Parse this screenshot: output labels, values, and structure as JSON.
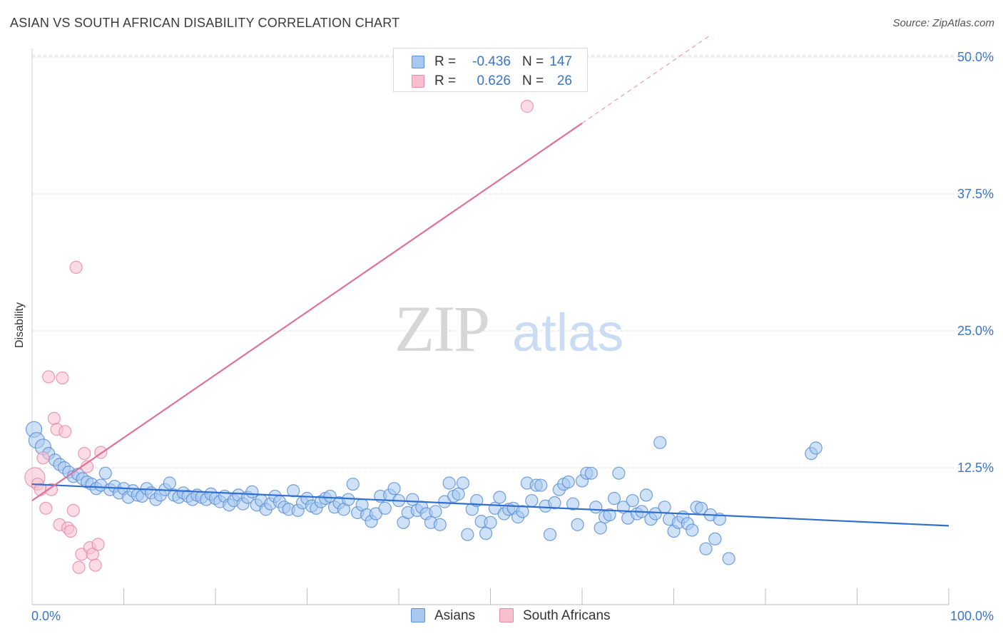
{
  "title": "ASIAN VS SOUTH AFRICAN DISABILITY CORRELATION CHART",
  "source": "Source: ZipAtlas.com",
  "watermark": {
    "zip": "ZIP",
    "atlas": "atlas"
  },
  "colors": {
    "asian_fill": "#a8c8f0",
    "asian_stroke": "#5b8fd6",
    "asian_line": "#2f6fcf",
    "sa_fill": "#f7bfd0",
    "sa_stroke": "#e58aa8",
    "sa_line": "#e0709a",
    "tick_text": "#3a74c8",
    "grid": "#dcdcdc"
  },
  "legend_top": [
    {
      "r_label": "R =",
      "r_value": "-0.436",
      "n_label": "N =",
      "n_value": "147"
    },
    {
      "r_label": "R =",
      "r_value": "0.626",
      "n_label": "N =",
      "n_value": "26"
    }
  ],
  "legend_bottom": [
    {
      "label": "Asians"
    },
    {
      "label": "South Africans"
    }
  ],
  "chart_data": {
    "type": "scatter",
    "title": "ASIAN VS SOUTH AFRICAN DISABILITY CORRELATION CHART",
    "xlabel": "",
    "ylabel": "Disability",
    "xlim": [
      0,
      100
    ],
    "ylim": [
      0,
      52
    ],
    "x_tick_labels": [
      "0.0%",
      "100.0%"
    ],
    "y_ticks": [
      12.5,
      25.0,
      37.5,
      50.0
    ],
    "y_tick_labels": [
      "12.5%",
      "25.0%",
      "37.5%",
      "50.0%"
    ],
    "grid": true,
    "legend_placement": "top-center",
    "series": [
      {
        "name": "Asians",
        "r": -0.436,
        "n": 147,
        "trend": {
          "x": [
            0,
            100
          ],
          "y": [
            11.0,
            7.2
          ],
          "solid_until": 100
        },
        "points": [
          [
            0.2,
            16.0
          ],
          [
            0.5,
            15.0
          ],
          [
            1.2,
            14.4
          ],
          [
            1.8,
            13.8
          ],
          [
            2.5,
            13.2
          ],
          [
            3.0,
            12.8
          ],
          [
            3.5,
            12.5
          ],
          [
            4.0,
            12.1
          ],
          [
            4.5,
            11.7
          ],
          [
            5.0,
            11.9
          ],
          [
            5.5,
            11.5
          ],
          [
            6.0,
            11.2
          ],
          [
            6.5,
            11.0
          ],
          [
            7.0,
            10.6
          ],
          [
            7.5,
            10.9
          ],
          [
            8.0,
            12.0
          ],
          [
            8.5,
            10.5
          ],
          [
            9.0,
            10.8
          ],
          [
            9.5,
            10.2
          ],
          [
            10.0,
            10.6
          ],
          [
            10.5,
            9.8
          ],
          [
            11.0,
            10.4
          ],
          [
            11.5,
            10.0
          ],
          [
            12.0,
            9.9
          ],
          [
            12.5,
            10.6
          ],
          [
            13.0,
            10.2
          ],
          [
            13.5,
            9.6
          ],
          [
            14.0,
            10.0
          ],
          [
            14.5,
            10.5
          ],
          [
            15.0,
            11.1
          ],
          [
            15.5,
            10.0
          ],
          [
            16.0,
            9.8
          ],
          [
            16.5,
            10.2
          ],
          [
            17.0,
            9.9
          ],
          [
            17.5,
            9.6
          ],
          [
            18.0,
            10.0
          ],
          [
            18.5,
            9.8
          ],
          [
            19.0,
            9.6
          ],
          [
            19.5,
            10.1
          ],
          [
            20.0,
            9.7
          ],
          [
            20.5,
            9.4
          ],
          [
            21.0,
            9.9
          ],
          [
            21.5,
            9.1
          ],
          [
            22.0,
            9.5
          ],
          [
            22.5,
            10.0
          ],
          [
            23.0,
            9.2
          ],
          [
            23.5,
            9.8
          ],
          [
            24.0,
            10.3
          ],
          [
            24.5,
            9.1
          ],
          [
            25.0,
            9.5
          ],
          [
            25.5,
            8.7
          ],
          [
            26.0,
            9.2
          ],
          [
            26.5,
            9.9
          ],
          [
            27.0,
            9.4
          ],
          [
            27.5,
            8.9
          ],
          [
            28.0,
            8.7
          ],
          [
            28.5,
            10.4
          ],
          [
            29.0,
            8.6
          ],
          [
            29.5,
            9.3
          ],
          [
            30.0,
            9.7
          ],
          [
            30.5,
            9.0
          ],
          [
            31.0,
            8.8
          ],
          [
            31.5,
            9.4
          ],
          [
            32.0,
            9.7
          ],
          [
            32.5,
            9.9
          ],
          [
            33.0,
            8.9
          ],
          [
            33.5,
            9.3
          ],
          [
            34.0,
            8.7
          ],
          [
            34.5,
            9.6
          ],
          [
            35.0,
            11.0
          ],
          [
            35.5,
            8.4
          ],
          [
            36.0,
            9.1
          ],
          [
            36.5,
            8.2
          ],
          [
            37.0,
            7.6
          ],
          [
            37.5,
            8.3
          ],
          [
            38.0,
            9.9
          ],
          [
            38.5,
            8.8
          ],
          [
            39.0,
            10.0
          ],
          [
            39.5,
            10.6
          ],
          [
            40.0,
            9.5
          ],
          [
            40.5,
            7.5
          ],
          [
            41.0,
            8.4
          ],
          [
            41.5,
            9.6
          ],
          [
            42.0,
            8.6
          ],
          [
            42.5,
            8.9
          ],
          [
            43.0,
            8.3
          ],
          [
            43.5,
            7.5
          ],
          [
            44.0,
            8.5
          ],
          [
            44.5,
            7.3
          ],
          [
            45.0,
            9.4
          ],
          [
            45.5,
            11.1
          ],
          [
            46.0,
            9.9
          ],
          [
            46.5,
            10.1
          ],
          [
            47.0,
            11.1
          ],
          [
            47.5,
            6.4
          ],
          [
            48.0,
            8.7
          ],
          [
            48.5,
            9.5
          ],
          [
            49.0,
            7.6
          ],
          [
            49.5,
            6.5
          ],
          [
            50.0,
            7.5
          ],
          [
            50.5,
            8.8
          ],
          [
            51.0,
            9.8
          ],
          [
            51.5,
            8.3
          ],
          [
            52.0,
            8.7
          ],
          [
            52.5,
            8.8
          ],
          [
            53.0,
            8.0
          ],
          [
            53.5,
            8.5
          ],
          [
            54.0,
            11.1
          ],
          [
            54.5,
            9.5
          ],
          [
            55.0,
            10.9
          ],
          [
            55.5,
            10.9
          ],
          [
            56.0,
            9.0
          ],
          [
            56.5,
            6.4
          ],
          [
            57.0,
            9.3
          ],
          [
            57.5,
            10.5
          ],
          [
            58.0,
            11.0
          ],
          [
            58.5,
            11.2
          ],
          [
            59.0,
            9.2
          ],
          [
            59.5,
            7.3
          ],
          [
            60.0,
            11.3
          ],
          [
            60.5,
            12.0
          ],
          [
            61.0,
            12.0
          ],
          [
            61.5,
            8.9
          ],
          [
            62.0,
            7.0
          ],
          [
            62.5,
            8.0
          ],
          [
            63.0,
            8.2
          ],
          [
            63.5,
            9.7
          ],
          [
            64.0,
            12.0
          ],
          [
            64.5,
            8.9
          ],
          [
            65.0,
            7.9
          ],
          [
            65.5,
            9.5
          ],
          [
            66.0,
            8.3
          ],
          [
            66.5,
            8.5
          ],
          [
            67.0,
            10.0
          ],
          [
            67.5,
            7.8
          ],
          [
            68.0,
            8.3
          ],
          [
            68.5,
            14.8
          ],
          [
            69.0,
            8.9
          ],
          [
            69.5,
            7.8
          ],
          [
            70.0,
            6.7
          ],
          [
            70.5,
            7.5
          ],
          [
            71.0,
            8.0
          ],
          [
            71.5,
            7.4
          ],
          [
            72.0,
            6.8
          ],
          [
            72.5,
            8.9
          ],
          [
            73.0,
            8.8
          ],
          [
            73.5,
            5.1
          ],
          [
            74.0,
            8.2
          ],
          [
            74.5,
            6.0
          ],
          [
            75.0,
            7.8
          ],
          [
            76.0,
            4.2
          ],
          [
            85.0,
            13.8
          ],
          [
            85.5,
            14.3
          ]
        ]
      },
      {
        "name": "South Africans",
        "r": 0.626,
        "n": 26,
        "trend": {
          "x": [
            0,
            74
          ],
          "y": [
            9.5,
            52.0
          ],
          "solid_until": 60
        },
        "points": [
          [
            0.3,
            11.6
          ],
          [
            0.6,
            11.0
          ],
          [
            0.9,
            10.5
          ],
          [
            1.2,
            13.4
          ],
          [
            1.5,
            8.8
          ],
          [
            1.8,
            20.8
          ],
          [
            2.1,
            10.5
          ],
          [
            2.4,
            17.0
          ],
          [
            2.7,
            16.0
          ],
          [
            3.0,
            7.3
          ],
          [
            3.3,
            20.7
          ],
          [
            3.6,
            15.8
          ],
          [
            3.9,
            7.0
          ],
          [
            4.2,
            6.7
          ],
          [
            4.5,
            8.6
          ],
          [
            4.8,
            30.8
          ],
          [
            5.1,
            3.4
          ],
          [
            5.4,
            4.6
          ],
          [
            5.7,
            13.8
          ],
          [
            6.0,
            12.6
          ],
          [
            6.3,
            5.2
          ],
          [
            6.6,
            4.6
          ],
          [
            6.9,
            3.6
          ],
          [
            7.2,
            5.5
          ],
          [
            7.5,
            13.9
          ],
          [
            54.0,
            45.5
          ]
        ]
      }
    ]
  }
}
